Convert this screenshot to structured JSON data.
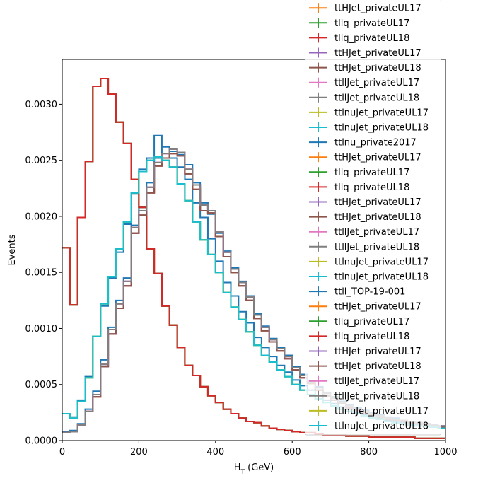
{
  "chart_data": {
    "type": "line",
    "step": true,
    "xlabel_main": "H",
    "xlabel_sub": "T",
    "xlabel_unit": " (GeV)",
    "ylabel": "Events",
    "xlim": [
      0,
      1000
    ],
    "ylim": [
      0,
      0.0034
    ],
    "x_ticks": [
      0,
      200,
      400,
      600,
      800,
      1000
    ],
    "y_ticks": [
      0.0,
      0.0005,
      0.001,
      0.0015,
      0.002,
      0.0025,
      0.003
    ],
    "y_tick_labels": [
      "0.0000",
      "0.0005",
      "0.0010",
      "0.0015",
      "0.0020",
      "0.0025",
      "0.0030"
    ],
    "grid": false,
    "legend_position": "right, partly above the axes",
    "bin_edges": [
      0,
      20,
      40,
      60,
      80,
      100,
      120,
      140,
      160,
      180,
      200,
      220,
      240,
      260,
      280,
      300,
      320,
      340,
      360,
      380,
      400,
      420,
      440,
      460,
      480,
      500,
      520,
      540,
      560,
      580,
      600,
      620,
      640,
      660,
      680,
      700,
      720,
      740,
      760,
      780,
      800,
      820,
      840,
      860,
      880,
      900,
      920,
      940,
      960,
      980,
      1000
    ],
    "shapes": {
      "tllq": [
        0.00172,
        0.00121,
        0.00199,
        0.00249,
        0.00316,
        0.00323,
        0.00309,
        0.00284,
        0.00265,
        0.00233,
        0.00208,
        0.00171,
        0.00149,
        0.0012,
        0.00103,
        0.00083,
        0.00067,
        0.00058,
        0.00048,
        0.0004,
        0.00034,
        0.00028,
        0.00024,
        0.0002,
        0.00017,
        0.00016,
        0.00013,
        0.00011,
        0.0001,
        9e-05,
        8e-05,
        7e-05,
        7e-05,
        6e-05,
        5e-05,
        5e-05,
        5e-05,
        4e-05,
        4e-05,
        4e-05,
        3e-05,
        3e-05,
        3e-05,
        3e-05,
        3e-05,
        3e-05,
        2e-05,
        2e-05,
        2e-05,
        2e-05
      ],
      "tthjet": [
        7e-05,
        8e-05,
        0.00014,
        0.00026,
        0.00039,
        0.00066,
        0.00095,
        0.00118,
        0.00138,
        0.00185,
        0.00201,
        0.00221,
        0.00245,
        0.00252,
        0.00256,
        0.00254,
        0.00238,
        0.00224,
        0.00205,
        0.00203,
        0.00182,
        0.00164,
        0.0015,
        0.00138,
        0.00125,
        0.00109,
        0.00098,
        0.00088,
        0.0008,
        0.00073,
        0.00063,
        0.00056,
        0.00051,
        0.00045,
        0.0004,
        0.00036,
        0.00033,
        0.00029,
        0.00027,
        0.00025,
        0.00023,
        0.00021,
        0.00019,
        0.00018,
        0.00017,
        0.00016,
        0.00015,
        0.00014,
        0.00013,
        0.00012
      ],
      "ttlljet": [
        7e-05,
        8e-05,
        0.00014,
        0.00026,
        0.00041,
        0.00068,
        0.00099,
        0.00122,
        0.00142,
        0.0019,
        0.00205,
        0.00226,
        0.00248,
        0.00256,
        0.0026,
        0.00257,
        0.00242,
        0.00228,
        0.0021,
        0.00205,
        0.00186,
        0.00168,
        0.00153,
        0.00141,
        0.00128,
        0.00112,
        0.00101,
        0.0009,
        0.00082,
        0.00075,
        0.00065,
        0.00058,
        0.00052,
        0.00047,
        0.00042,
        0.00038,
        0.00034,
        0.00031,
        0.00028,
        0.00026,
        0.00024,
        0.00022,
        0.0002,
        0.00019,
        0.00018,
        0.00017,
        0.00016,
        0.00015,
        0.00014,
        0.00013
      ],
      "ttlnujet": [
        0.00024,
        0.0002,
        0.00035,
        0.00056,
        0.00093,
        0.00122,
        0.00146,
        0.00171,
        0.00195,
        0.00221,
        0.0024,
        0.0025,
        0.00253,
        0.0025,
        0.00244,
        0.00229,
        0.00214,
        0.00195,
        0.00179,
        0.00166,
        0.0015,
        0.00132,
        0.00119,
        0.00108,
        0.00097,
        0.00085,
        0.00076,
        0.0007,
        0.00063,
        0.00057,
        0.0005,
        0.00045,
        0.00041,
        0.00037,
        0.00034,
        0.00031,
        0.00028,
        0.00026,
        0.00024,
        0.00022,
        0.0002,
        0.00019,
        0.00017,
        0.00016,
        0.00015,
        0.00014,
        0.00013,
        0.00013,
        0.00012,
        0.00011
      ],
      "ttlnu2017": [
        0.00024,
        0.00021,
        0.00036,
        0.00057,
        0.00093,
        0.0012,
        0.00145,
        0.00168,
        0.00193,
        0.0022,
        0.00242,
        0.00252,
        0.00272,
        0.00262,
        0.00252,
        0.00244,
        0.00233,
        0.00212,
        0.00199,
        0.0018,
        0.0016,
        0.00141,
        0.00129,
        0.00115,
        0.00105,
        0.00092,
        0.00083,
        0.00075,
        0.00067,
        0.00061,
        0.00054,
        0.00049,
        0.00045,
        0.0004,
        0.00036,
        0.00033,
        0.0003,
        0.00028,
        0.00025,
        0.00023,
        0.00021,
        0.0002,
        0.00018,
        0.00017,
        0.00016,
        0.00015,
        0.00014,
        0.00013,
        0.00012,
        0.00012
      ],
      "ttll_top": [
        8e-05,
        9e-05,
        0.00015,
        0.00028,
        0.00044,
        0.00072,
        0.00101,
        0.00125,
        0.00145,
        0.00192,
        0.00208,
        0.0023,
        0.00252,
        0.00262,
        0.00258,
        0.00255,
        0.00246,
        0.0023,
        0.00212,
        0.00202,
        0.00185,
        0.00169,
        0.00154,
        0.00142,
        0.00129,
        0.00113,
        0.00102,
        0.00091,
        0.00083,
        0.00076,
        0.00066,
        0.00059,
        0.00053,
        0.00048,
        0.00043,
        0.00039,
        0.00035,
        0.00032,
        0.00029,
        0.00027,
        0.00025,
        0.00023,
        0.00021,
        0.0002,
        0.00018,
        0.00017,
        0.00016,
        0.00015,
        0.00014,
        0.00013
      ]
    },
    "series": [
      {
        "name": "ttHJet_privateUL17",
        "color": "#ff7f0e",
        "shape": "tthjet"
      },
      {
        "name": "tllq_privateUL17",
        "color": "#2ca02c",
        "shape": "tllq"
      },
      {
        "name": "tllq_privateUL18",
        "color": "#d62728",
        "shape": "tllq"
      },
      {
        "name": "ttHJet_privateUL17",
        "color": "#9467bd",
        "shape": "tthjet"
      },
      {
        "name": "ttHJet_privateUL18",
        "color": "#8c564b",
        "shape": "tthjet"
      },
      {
        "name": "ttllJet_privateUL17",
        "color": "#e377c2",
        "shape": "ttlljet"
      },
      {
        "name": "ttllJet_privateUL18",
        "color": "#7f7f7f",
        "shape": "ttlljet"
      },
      {
        "name": "ttlnuJet_privateUL17",
        "color": "#bcbd22",
        "shape": "ttlnujet"
      },
      {
        "name": "ttlnuJet_privateUL18",
        "color": "#17becf",
        "shape": "ttlnujet"
      },
      {
        "name": "ttlnu_private2017",
        "color": "#1f77b4",
        "shape": "ttlnu2017"
      },
      {
        "name": "ttHJet_privateUL17",
        "color": "#ff7f0e",
        "shape": "tthjet"
      },
      {
        "name": "tllq_privateUL17",
        "color": "#2ca02c",
        "shape": "tllq"
      },
      {
        "name": "tllq_privateUL18",
        "color": "#d62728",
        "shape": "tllq"
      },
      {
        "name": "ttHJet_privateUL17",
        "color": "#9467bd",
        "shape": "tthjet"
      },
      {
        "name": "ttHJet_privateUL18",
        "color": "#8c564b",
        "shape": "tthjet"
      },
      {
        "name": "ttllJet_privateUL17",
        "color": "#e377c2",
        "shape": "ttlljet"
      },
      {
        "name": "ttllJet_privateUL18",
        "color": "#7f7f7f",
        "shape": "ttlljet"
      },
      {
        "name": "ttlnuJet_privateUL17",
        "color": "#bcbd22",
        "shape": "ttlnujet"
      },
      {
        "name": "ttlnuJet_privateUL18",
        "color": "#17becf",
        "shape": "ttlnujet"
      },
      {
        "name": "ttll_TOP-19-001",
        "color": "#1f77b4",
        "shape": "ttll_top"
      },
      {
        "name": "ttHJet_privateUL17",
        "color": "#ff7f0e",
        "shape": "tthjet"
      },
      {
        "name": "tllq_privateUL17",
        "color": "#2ca02c",
        "shape": "tllq"
      },
      {
        "name": "tllq_privateUL18",
        "color": "#d62728",
        "shape": "tllq"
      },
      {
        "name": "ttHJet_privateUL17",
        "color": "#9467bd",
        "shape": "tthjet"
      },
      {
        "name": "ttHJet_privateUL18",
        "color": "#8c564b",
        "shape": "tthjet"
      },
      {
        "name": "ttllJet_privateUL17",
        "color": "#e377c2",
        "shape": "ttlljet"
      },
      {
        "name": "ttllJet_privateUL18",
        "color": "#7f7f7f",
        "shape": "ttlljet"
      },
      {
        "name": "ttlnuJet_privateUL17",
        "color": "#bcbd22",
        "shape": "ttlnujet"
      },
      {
        "name": "ttlnuJet_privateUL18",
        "color": "#17becf",
        "shape": "ttlnujet"
      }
    ]
  }
}
